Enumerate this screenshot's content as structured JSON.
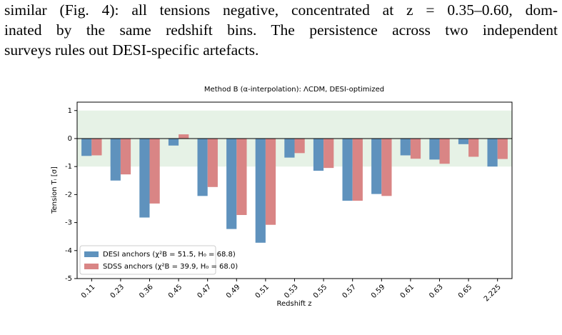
{
  "text": {
    "lines": [
      "similar (Fig. 4): all tensions negative, concentrated at z = 0.35–0.60, dom-",
      "inated by the same redshift bins. The persistence across two independent",
      "surveys rules out DESI-specific artefacts."
    ]
  },
  "chart_data": {
    "type": "bar",
    "title": "Method B (α-interpolation): ΛCDM, DESI-optimized",
    "x_label": "Redshift z",
    "y_label": "Tension Tᵢ [σ]",
    "categories": [
      "0.11",
      "0.23",
      "0.36",
      "0.45",
      "0.47",
      "0.49",
      "0.51",
      "0.53",
      "0.55",
      "0.57",
      "0.59",
      "0.61",
      "0.63",
      "0.65",
      "2.225"
    ],
    "series": [
      {
        "name": "DESI anchors (χ²B = 51.5, H₀ = 68.8)",
        "color": "#5f92bd",
        "values": [
          -0.62,
          -1.5,
          -2.82,
          -0.25,
          -2.05,
          -3.23,
          -3.72,
          -0.68,
          -1.15,
          -2.22,
          -1.98,
          -0.6,
          -0.75,
          -0.2,
          -1.0
        ]
      },
      {
        "name": "SDSS anchors (χ²B = 39.9, H₀ = 68.0)",
        "color": "#d98585",
        "values": [
          -0.6,
          -1.28,
          -2.32,
          0.15,
          -1.73,
          -2.73,
          -3.08,
          -0.52,
          -1.05,
          -2.22,
          -2.05,
          -0.72,
          -0.9,
          -0.65,
          -0.73
        ]
      }
    ],
    "ylim": [
      -5,
      1.3
    ],
    "yticks": [
      1,
      0,
      -1,
      -2,
      -3,
      -4,
      -5
    ],
    "band": [
      -1,
      1
    ],
    "legend": "lower left"
  }
}
